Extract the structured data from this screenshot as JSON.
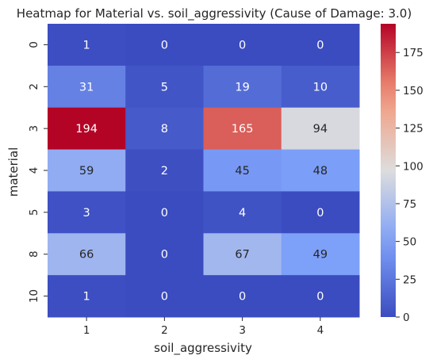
{
  "chart_data": {
    "type": "heatmap",
    "title": "Heatmap for Material vs. soil_aggressivity (Cause of Damage: 3.0)",
    "xlabel": "soil_aggressivity",
    "ylabel": "material",
    "x_categories": [
      "1",
      "2",
      "3",
      "4"
    ],
    "y_categories": [
      "0",
      "2",
      "3",
      "4",
      "5",
      "8",
      "10"
    ],
    "values": [
      [
        1,
        0,
        0,
        0
      ],
      [
        31,
        5,
        19,
        10
      ],
      [
        194,
        8,
        165,
        94
      ],
      [
        59,
        2,
        45,
        48
      ],
      [
        3,
        0,
        4,
        0
      ],
      [
        66,
        0,
        67,
        49
      ],
      [
        1,
        0,
        0,
        0
      ]
    ],
    "colormap": "coolwarm",
    "vmin": 0,
    "vmax": 194,
    "colorbar_ticks": [
      "0",
      "25",
      "50",
      "75",
      "100",
      "125",
      "150",
      "175"
    ]
  }
}
